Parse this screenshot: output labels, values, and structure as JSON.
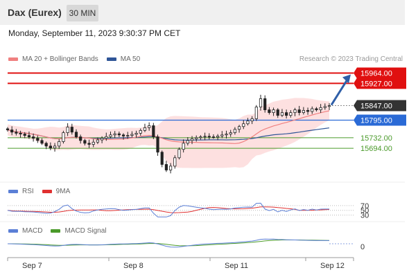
{
  "header": {
    "instrument": "Dax (Eurex)",
    "timeframe": "30 MIN"
  },
  "datetime": "Monday, September 11, 2023 9:30:37 PM CET",
  "credit": "Research © 2023 Trading Central",
  "legend_main": [
    {
      "label": "MA 20 + Bollinger Bands",
      "color": "#f08080"
    },
    {
      "label": "MA 50",
      "color": "#2f5597"
    }
  ],
  "legend_rsi": [
    {
      "label": "RSI",
      "color": "#5b7fd6"
    },
    {
      "label": "9MA",
      "color": "#e03030"
    }
  ],
  "legend_macd": [
    {
      "label": "MACD",
      "color": "#5b7fd6"
    },
    {
      "label": "MACD Signal",
      "color": "#4a9a2a"
    }
  ],
  "colors": {
    "resistance": "#e01010",
    "support": "#4a9a2a",
    "pivot": "#2a6ad6",
    "current": "#333333",
    "arrow": "#2f5fa8",
    "bb_fill": "#fcd6d6"
  },
  "chart_data": {
    "type": "candlestick",
    "x_ticks": [
      "Sep 7",
      "Sep 8",
      "Sep 11",
      "Sep 12"
    ],
    "ylim": [
      15580,
      15990
    ],
    "levels": [
      {
        "value": "15964.00",
        "kind": "resistance"
      },
      {
        "value": "15927.00",
        "kind": "resistance"
      },
      {
        "value": "15847.00",
        "kind": "current"
      },
      {
        "value": "15795.00",
        "kind": "pivot"
      },
      {
        "value": "15732.00",
        "kind": "support"
      },
      {
        "value": "15694.00",
        "kind": "support"
      }
    ],
    "close_series": [
      15760,
      15752,
      15748,
      15745,
      15740,
      15735,
      15730,
      15722,
      15712,
      15702,
      15695,
      15702,
      15718,
      15750,
      15770,
      15752,
      15735,
      15722,
      15712,
      15708,
      15716,
      15724,
      15730,
      15736,
      15742,
      15746,
      15742,
      15738,
      15740,
      15744,
      15748,
      15758,
      15768,
      15775,
      15735,
      15680,
      15636,
      15616,
      15630,
      15660,
      15690,
      15712,
      15722,
      15728,
      15732,
      15735,
      15737,
      15735,
      15734,
      15738,
      15742,
      15745,
      15750,
      15762,
      15772,
      15782,
      15792,
      15800,
      15842,
      15872,
      15832,
      15822,
      15832,
      15812,
      15822,
      15812,
      15822,
      15832,
      15822,
      15830,
      15826,
      15836,
      15832,
      15840,
      15844,
      15847
    ],
    "rsi_ticks": [
      "70",
      "50",
      "30"
    ],
    "macd_ticks": [
      "0"
    ]
  }
}
